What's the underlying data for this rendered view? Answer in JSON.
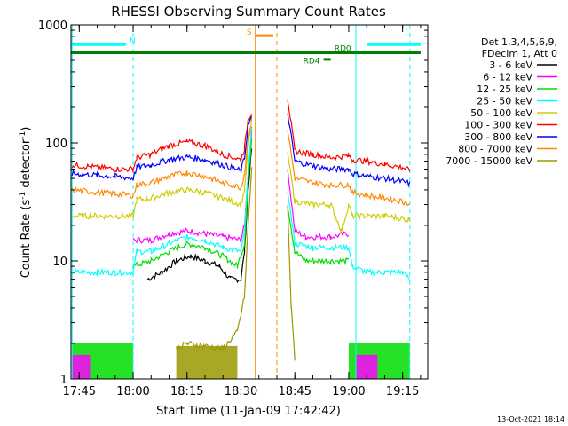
{
  "chart_data": {
    "type": "line",
    "title": "RHESSI Observing Summary Count Rates",
    "xlabel": "Start Time (11-Jan-09 17:42:42)",
    "ylabel_main": "Count Rate (s",
    "ylabel_sup1": "-1",
    "ylabel_mid": " detector",
    "ylabel_sup2": "-1",
    "ylabel_end": ")",
    "yscale": "log",
    "ylim": [
      1,
      1000
    ],
    "xlim": [
      "17:42:42",
      "19:22:00"
    ],
    "x_ticks": [
      "17:45",
      "18:00",
      "18:15",
      "18:30",
      "18:45",
      "19:00",
      "19:15"
    ],
    "y_ticks": [
      "1",
      "10",
      "100",
      "1000"
    ],
    "footer_date": "13-Oct-2021 18:14",
    "legend": {
      "header": [
        "Det 1,3,4,5,6,9,",
        "FDecim 1, Att 0"
      ],
      "entries": [
        {
          "label": "3 - 6 keV",
          "color": "#000000"
        },
        {
          "label": "6 - 12 keV",
          "color": "#ff00ff"
        },
        {
          "label": "12 - 25 keV",
          "color": "#00dd00"
        },
        {
          "label": "25 - 50 keV",
          "color": "#00ffff"
        },
        {
          "label": "50 - 100 keV",
          "color": "#cccc00"
        },
        {
          "label": "100 - 300 keV",
          "color": "#ff0000"
        },
        {
          "label": "300 - 800 keV",
          "color": "#0000ff"
        },
        {
          "label": "800 - 7000 keV",
          "color": "#ff8800"
        },
        {
          "label": "7000 - 15000 keV",
          "color": "#999900"
        }
      ]
    },
    "flags": {
      "N": {
        "label": "N",
        "color": "#00ffff"
      },
      "S": {
        "label": "S",
        "color": "#ff8800"
      },
      "RD0": {
        "label": "RD0",
        "color": "#008000"
      },
      "RD4": {
        "label": "RD4",
        "color": "#008000"
      }
    },
    "series": [
      {
        "name": "3 - 6 keV",
        "color": "#000000",
        "points": [
          [
            "17:43",
            null
          ],
          [
            "18:00",
            null
          ],
          [
            "18:04",
            7
          ],
          [
            "18:08",
            8
          ],
          [
            "18:12",
            10
          ],
          [
            "18:16",
            11
          ],
          [
            "18:20",
            10
          ],
          [
            "18:24",
            9
          ],
          [
            "18:27",
            7
          ],
          [
            "18:30",
            7
          ],
          [
            "18:31",
            12
          ],
          [
            "18:32",
            40
          ],
          [
            "18:33",
            90
          ],
          [
            "18:34",
            null
          ]
        ]
      },
      {
        "name": "6 - 12 keV",
        "color": "#ff00ff",
        "points": [
          [
            "18:00",
            15
          ],
          [
            "18:05",
            15
          ],
          [
            "18:10",
            17
          ],
          [
            "18:15",
            18
          ],
          [
            "18:20",
            17
          ],
          [
            "18:25",
            16
          ],
          [
            "18:30",
            15
          ],
          [
            "18:31",
            20
          ],
          [
            "18:32",
            55
          ],
          [
            "18:33",
            120
          ],
          [
            "18:34",
            null
          ],
          [
            "18:43",
            60
          ],
          [
            "18:45",
            18
          ],
          [
            "18:48",
            16
          ],
          [
            "18:55",
            16
          ],
          [
            "19:00",
            17
          ],
          [
            "19:01",
            null
          ]
        ]
      },
      {
        "name": "12 - 25 keV",
        "color": "#00dd00",
        "points": [
          [
            "18:00",
            9
          ],
          [
            "18:05",
            10
          ],
          [
            "18:10",
            12
          ],
          [
            "18:15",
            14
          ],
          [
            "18:20",
            13
          ],
          [
            "18:25",
            11
          ],
          [
            "18:29",
            9
          ],
          [
            "18:31",
            14
          ],
          [
            "18:32",
            45
          ],
          [
            "18:33",
            110
          ],
          [
            "18:34",
            null
          ],
          [
            "18:43",
            30
          ],
          [
            "18:45",
            12
          ],
          [
            "18:48",
            10
          ],
          [
            "18:55",
            10
          ],
          [
            "19:00",
            10
          ],
          [
            "19:01",
            null
          ]
        ]
      },
      {
        "name": "25 - 50 keV",
        "color": "#00ffff",
        "points": [
          [
            "17:43",
            8
          ],
          [
            "17:50",
            8
          ],
          [
            "17:55",
            8
          ],
          [
            "18:00",
            8
          ],
          [
            "18:01",
            12
          ],
          [
            "18:05",
            12
          ],
          [
            "18:10",
            14
          ],
          [
            "18:15",
            16
          ],
          [
            "18:20",
            15
          ],
          [
            "18:25",
            13
          ],
          [
            "18:30",
            12
          ],
          [
            "18:31",
            18
          ],
          [
            "18:32",
            55
          ],
          [
            "18:33",
            130
          ],
          [
            "18:34",
            null
          ],
          [
            "18:43",
            40
          ],
          [
            "18:45",
            14
          ],
          [
            "18:50",
            13
          ],
          [
            "18:55",
            13
          ],
          [
            "19:00",
            13
          ],
          [
            "19:01",
            9
          ],
          [
            "19:05",
            8
          ],
          [
            "19:10",
            8
          ],
          [
            "19:15",
            8
          ],
          [
            "19:17",
            7
          ]
        ]
      },
      {
        "name": "50 - 100 keV",
        "color": "#cccc00",
        "points": [
          [
            "17:43",
            24
          ],
          [
            "17:50",
            24
          ],
          [
            "17:55",
            24
          ],
          [
            "18:00",
            24
          ],
          [
            "18:01",
            33
          ],
          [
            "18:05",
            34
          ],
          [
            "18:10",
            38
          ],
          [
            "18:15",
            40
          ],
          [
            "18:20",
            38
          ],
          [
            "18:25",
            34
          ],
          [
            "18:30",
            30
          ],
          [
            "18:31",
            40
          ],
          [
            "18:32",
            90
          ],
          [
            "18:33",
            160
          ],
          [
            "18:34",
            null
          ],
          [
            "18:43",
            80
          ],
          [
            "18:45",
            32
          ],
          [
            "18:50",
            30
          ],
          [
            "18:55",
            30
          ],
          [
            "18:58",
            18
          ],
          [
            "19:00",
            30
          ],
          [
            "19:01",
            24
          ],
          [
            "19:05",
            24
          ],
          [
            "19:10",
            24
          ],
          [
            "19:15",
            23
          ],
          [
            "19:17",
            22
          ]
        ]
      },
      {
        "name": "100 - 300 keV",
        "color": "#ff0000",
        "points": [
          [
            "17:43",
            65
          ],
          [
            "17:50",
            62
          ],
          [
            "17:55",
            60
          ],
          [
            "18:00",
            60
          ],
          [
            "18:01",
            75
          ],
          [
            "18:05",
            80
          ],
          [
            "18:10",
            95
          ],
          [
            "18:15",
            102
          ],
          [
            "18:20",
            95
          ],
          [
            "18:25",
            80
          ],
          [
            "18:30",
            72
          ],
          [
            "18:31",
            90
          ],
          [
            "18:32",
            160
          ],
          [
            "18:33",
            180
          ],
          [
            "18:34",
            null
          ],
          [
            "18:43",
            240
          ],
          [
            "18:45",
            85
          ],
          [
            "18:50",
            80
          ],
          [
            "18:55",
            75
          ],
          [
            "19:00",
            78
          ],
          [
            "19:01",
            72
          ],
          [
            "19:05",
            70
          ],
          [
            "19:10",
            66
          ],
          [
            "19:15",
            62
          ],
          [
            "19:17",
            58
          ]
        ]
      },
      {
        "name": "300 - 800 keV",
        "color": "#0000ff",
        "points": [
          [
            "17:43",
            55
          ],
          [
            "17:50",
            53
          ],
          [
            "17:55",
            52
          ],
          [
            "18:00",
            50
          ],
          [
            "18:01",
            62
          ],
          [
            "18:05",
            65
          ],
          [
            "18:10",
            72
          ],
          [
            "18:15",
            76
          ],
          [
            "18:20",
            72
          ],
          [
            "18:25",
            65
          ],
          [
            "18:30",
            58
          ],
          [
            "18:31",
            75
          ],
          [
            "18:32",
            140
          ],
          [
            "18:33",
            160
          ],
          [
            "18:34",
            null
          ],
          [
            "18:43",
            180
          ],
          [
            "18:45",
            70
          ],
          [
            "18:50",
            64
          ],
          [
            "18:55",
            60
          ],
          [
            "19:00",
            60
          ],
          [
            "19:01",
            55
          ],
          [
            "19:05",
            52
          ],
          [
            "19:10",
            50
          ],
          [
            "19:15",
            47
          ],
          [
            "19:17",
            45
          ]
        ]
      },
      {
        "name": "800 - 7000 keV",
        "color": "#ff8800",
        "points": [
          [
            "17:43",
            40
          ],
          [
            "17:50",
            38
          ],
          [
            "17:55",
            37
          ],
          [
            "18:00",
            36
          ],
          [
            "18:01",
            44
          ],
          [
            "18:05",
            46
          ],
          [
            "18:10",
            52
          ],
          [
            "18:15",
            56
          ],
          [
            "18:20",
            52
          ],
          [
            "18:25",
            46
          ],
          [
            "18:30",
            42
          ],
          [
            "18:31",
            55
          ],
          [
            "18:32",
            110
          ],
          [
            "18:33",
            140
          ],
          [
            "18:34",
            null
          ],
          [
            "18:43",
            130
          ],
          [
            "18:45",
            50
          ],
          [
            "18:50",
            46
          ],
          [
            "18:55",
            44
          ],
          [
            "19:00",
            44
          ],
          [
            "19:01",
            38
          ],
          [
            "19:05",
            36
          ],
          [
            "19:10",
            34
          ],
          [
            "19:15",
            32
          ],
          [
            "19:17",
            30
          ]
        ]
      },
      {
        "name": "7000 - 15000 keV",
        "color": "#999900",
        "points": [
          [
            "18:12",
            1.8
          ],
          [
            "18:15",
            2.0
          ],
          [
            "18:20",
            1.9
          ],
          [
            "18:25",
            1.8
          ],
          [
            "18:29",
            2.5
          ],
          [
            "18:31",
            5
          ],
          [
            "18:32",
            20
          ],
          [
            "18:33",
            60
          ],
          [
            "18:34",
            null
          ],
          [
            "18:43",
            30
          ],
          [
            "18:44",
            4
          ],
          [
            "18:45",
            1.5
          ]
        ]
      }
    ],
    "bands_low": [
      {
        "color": "#00dd00",
        "start": "17:43",
        "end": "18:00",
        "low": 1,
        "high": 2
      },
      {
        "color": "#00dd00",
        "start": "19:00",
        "end": "19:17",
        "low": 1,
        "high": 2
      },
      {
        "color": "#ff00ff",
        "start": "17:43",
        "end": "17:48",
        "low": 1,
        "high": 1.6
      },
      {
        "color": "#ff00ff",
        "start": "19:02",
        "end": "19:08",
        "low": 1,
        "high": 1.6
      },
      {
        "color": "#999900",
        "start": "18:12",
        "end": "18:29",
        "low": 1,
        "high": 1.9
      }
    ],
    "flag_bars": [
      {
        "flag": "N",
        "start": "17:43",
        "end": "17:58",
        "value": 680,
        "color": "#00ffff"
      },
      {
        "flag": "N",
        "start": "19:05",
        "end": "19:20",
        "value": 680,
        "color": "#00ffff"
      },
      {
        "flag": "S",
        "start": "18:34",
        "end": "18:39",
        "value": 810,
        "color": "#ff8800"
      },
      {
        "flag": "RD0",
        "start": "17:42:42",
        "end": "19:20",
        "value": 580,
        "color": "#008000"
      },
      {
        "flag": "RD4",
        "start": "18:53",
        "end": "18:55",
        "value": 510,
        "color": "#008000"
      }
    ],
    "vlines": [
      {
        "time": "17:43",
        "color": "#00ffff",
        "dash": false
      },
      {
        "time": "18:00",
        "color": "#00ffff",
        "dash": true
      },
      {
        "time": "18:34",
        "color": "#ff8800",
        "dash": false
      },
      {
        "time": "18:40",
        "color": "#ff8800",
        "dash": true
      },
      {
        "time": "19:02",
        "color": "#00ffff",
        "dash": false
      },
      {
        "time": "19:17",
        "color": "#00ffff",
        "dash": true
      }
    ]
  }
}
